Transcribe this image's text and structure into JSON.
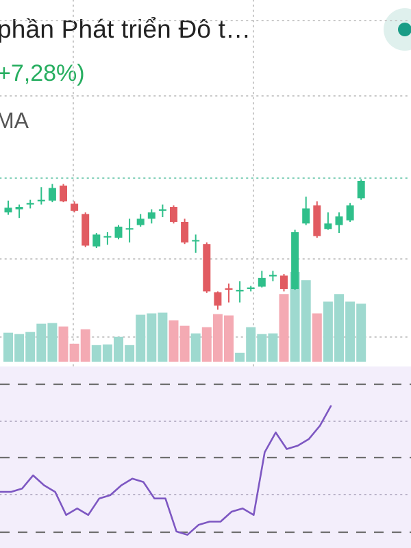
{
  "header": {
    "title": "phần Phát triển Đô t…",
    "change": "+7,28%)",
    "indicator_label": "MA"
  },
  "colors": {
    "up": "#2fbf8a",
    "down": "#e15b61",
    "volume_up": "#9ed9cf",
    "volume_down": "#f4aab3",
    "rsi_line": "#7d57c2",
    "rsi_bg": "#f3eefb",
    "grid": "#c8c8c8"
  },
  "chart_data": {
    "type": "candlestick",
    "title": "",
    "candles": [
      {
        "open": 98.0,
        "close": 98.6,
        "high": 99.5,
        "low": 97.7
      },
      {
        "open": 98.4,
        "close": 98.7,
        "high": 99.0,
        "low": 97.3
      },
      {
        "open": 99.0,
        "close": 99.2,
        "high": 99.6,
        "low": 98.5
      },
      {
        "open": 99.4,
        "close": 99.6,
        "high": 101.2,
        "low": 99.0
      },
      {
        "open": 99.5,
        "close": 101.1,
        "high": 101.6,
        "low": 99.3
      },
      {
        "open": 101.4,
        "close": 99.4,
        "high": 101.6,
        "low": 99.3
      },
      {
        "open": 99.1,
        "close": 98.2,
        "high": 99.4,
        "low": 98.0
      },
      {
        "open": 97.8,
        "close": 93.8,
        "high": 98.0,
        "low": 93.6
      },
      {
        "open": 93.7,
        "close": 95.2,
        "high": 95.4,
        "low": 93.5
      },
      {
        "open": 94.9,
        "close": 95.0,
        "high": 95.5,
        "low": 93.9
      },
      {
        "open": 94.8,
        "close": 96.2,
        "high": 96.4,
        "low": 94.6
      },
      {
        "open": 96.0,
        "close": 96.0,
        "high": 97.2,
        "low": 94.2
      },
      {
        "open": 96.4,
        "close": 97.2,
        "high": 97.8,
        "low": 96.2
      },
      {
        "open": 97.2,
        "close": 98.0,
        "high": 98.4,
        "low": 96.6
      },
      {
        "open": 98.2,
        "close": 98.4,
        "high": 99.0,
        "low": 97.4
      },
      {
        "open": 98.7,
        "close": 96.8,
        "high": 98.9,
        "low": 96.6
      },
      {
        "open": 96.8,
        "close": 94.2,
        "high": 97.2,
        "low": 94.0
      },
      {
        "open": 94.5,
        "close": 94.5,
        "high": 95.2,
        "low": 92.9
      },
      {
        "open": 94.0,
        "close": 88.0,
        "high": 94.2,
        "low": 87.8
      },
      {
        "open": 87.9,
        "close": 86.2,
        "high": 88.0,
        "low": 85.7
      },
      {
        "open": 88.4,
        "close": 88.2,
        "high": 89.0,
        "low": 86.6
      },
      {
        "open": 88.0,
        "close": 88.2,
        "high": 89.3,
        "low": 86.6
      },
      {
        "open": 88.3,
        "close": 88.5,
        "high": 88.7,
        "low": 88.0
      },
      {
        "open": 88.6,
        "close": 89.7,
        "high": 90.6,
        "low": 88.5
      },
      {
        "open": 89.9,
        "close": 90.1,
        "high": 90.6,
        "low": 89.3
      },
      {
        "open": 90.0,
        "close": 88.3,
        "high": 90.2,
        "low": 88.0
      },
      {
        "open": 88.3,
        "close": 95.5,
        "high": 95.8,
        "low": 88.2
      },
      {
        "open": 96.6,
        "close": 98.5,
        "high": 100.0,
        "low": 96.4
      },
      {
        "open": 98.9,
        "close": 95.0,
        "high": 99.4,
        "low": 94.8
      },
      {
        "open": 95.9,
        "close": 96.6,
        "high": 98.0,
        "low": 95.8
      },
      {
        "open": 96.4,
        "close": 97.5,
        "high": 98.0,
        "low": 95.4
      },
      {
        "open": 97.0,
        "close": 98.9,
        "high": 99.2,
        "low": 96.8
      },
      {
        "open": 99.8,
        "close": 102.0,
        "high": 102.2,
        "low": 99.6
      }
    ],
    "price_range": [
      85,
      102
    ],
    "volumes": [
      42,
      40,
      43,
      55,
      56,
      51,
      26,
      47,
      24,
      25,
      36,
      24,
      68,
      70,
      71,
      60,
      52,
      41,
      50,
      69,
      67,
      13,
      50,
      40,
      41,
      98,
      130,
      118,
      70,
      87,
      98,
      87,
      84
    ],
    "volume_range": [
      0,
      135
    ],
    "rsi": [
      52,
      52,
      53,
      57,
      54,
      52,
      45,
      47,
      45,
      50,
      51,
      54,
      56,
      55,
      50,
      50,
      40,
      39,
      42,
      43,
      43,
      46,
      47,
      45,
      64,
      70,
      65,
      66,
      68,
      72,
      78
    ],
    "rsi_range": [
      35,
      90
    ],
    "grid": true
  }
}
